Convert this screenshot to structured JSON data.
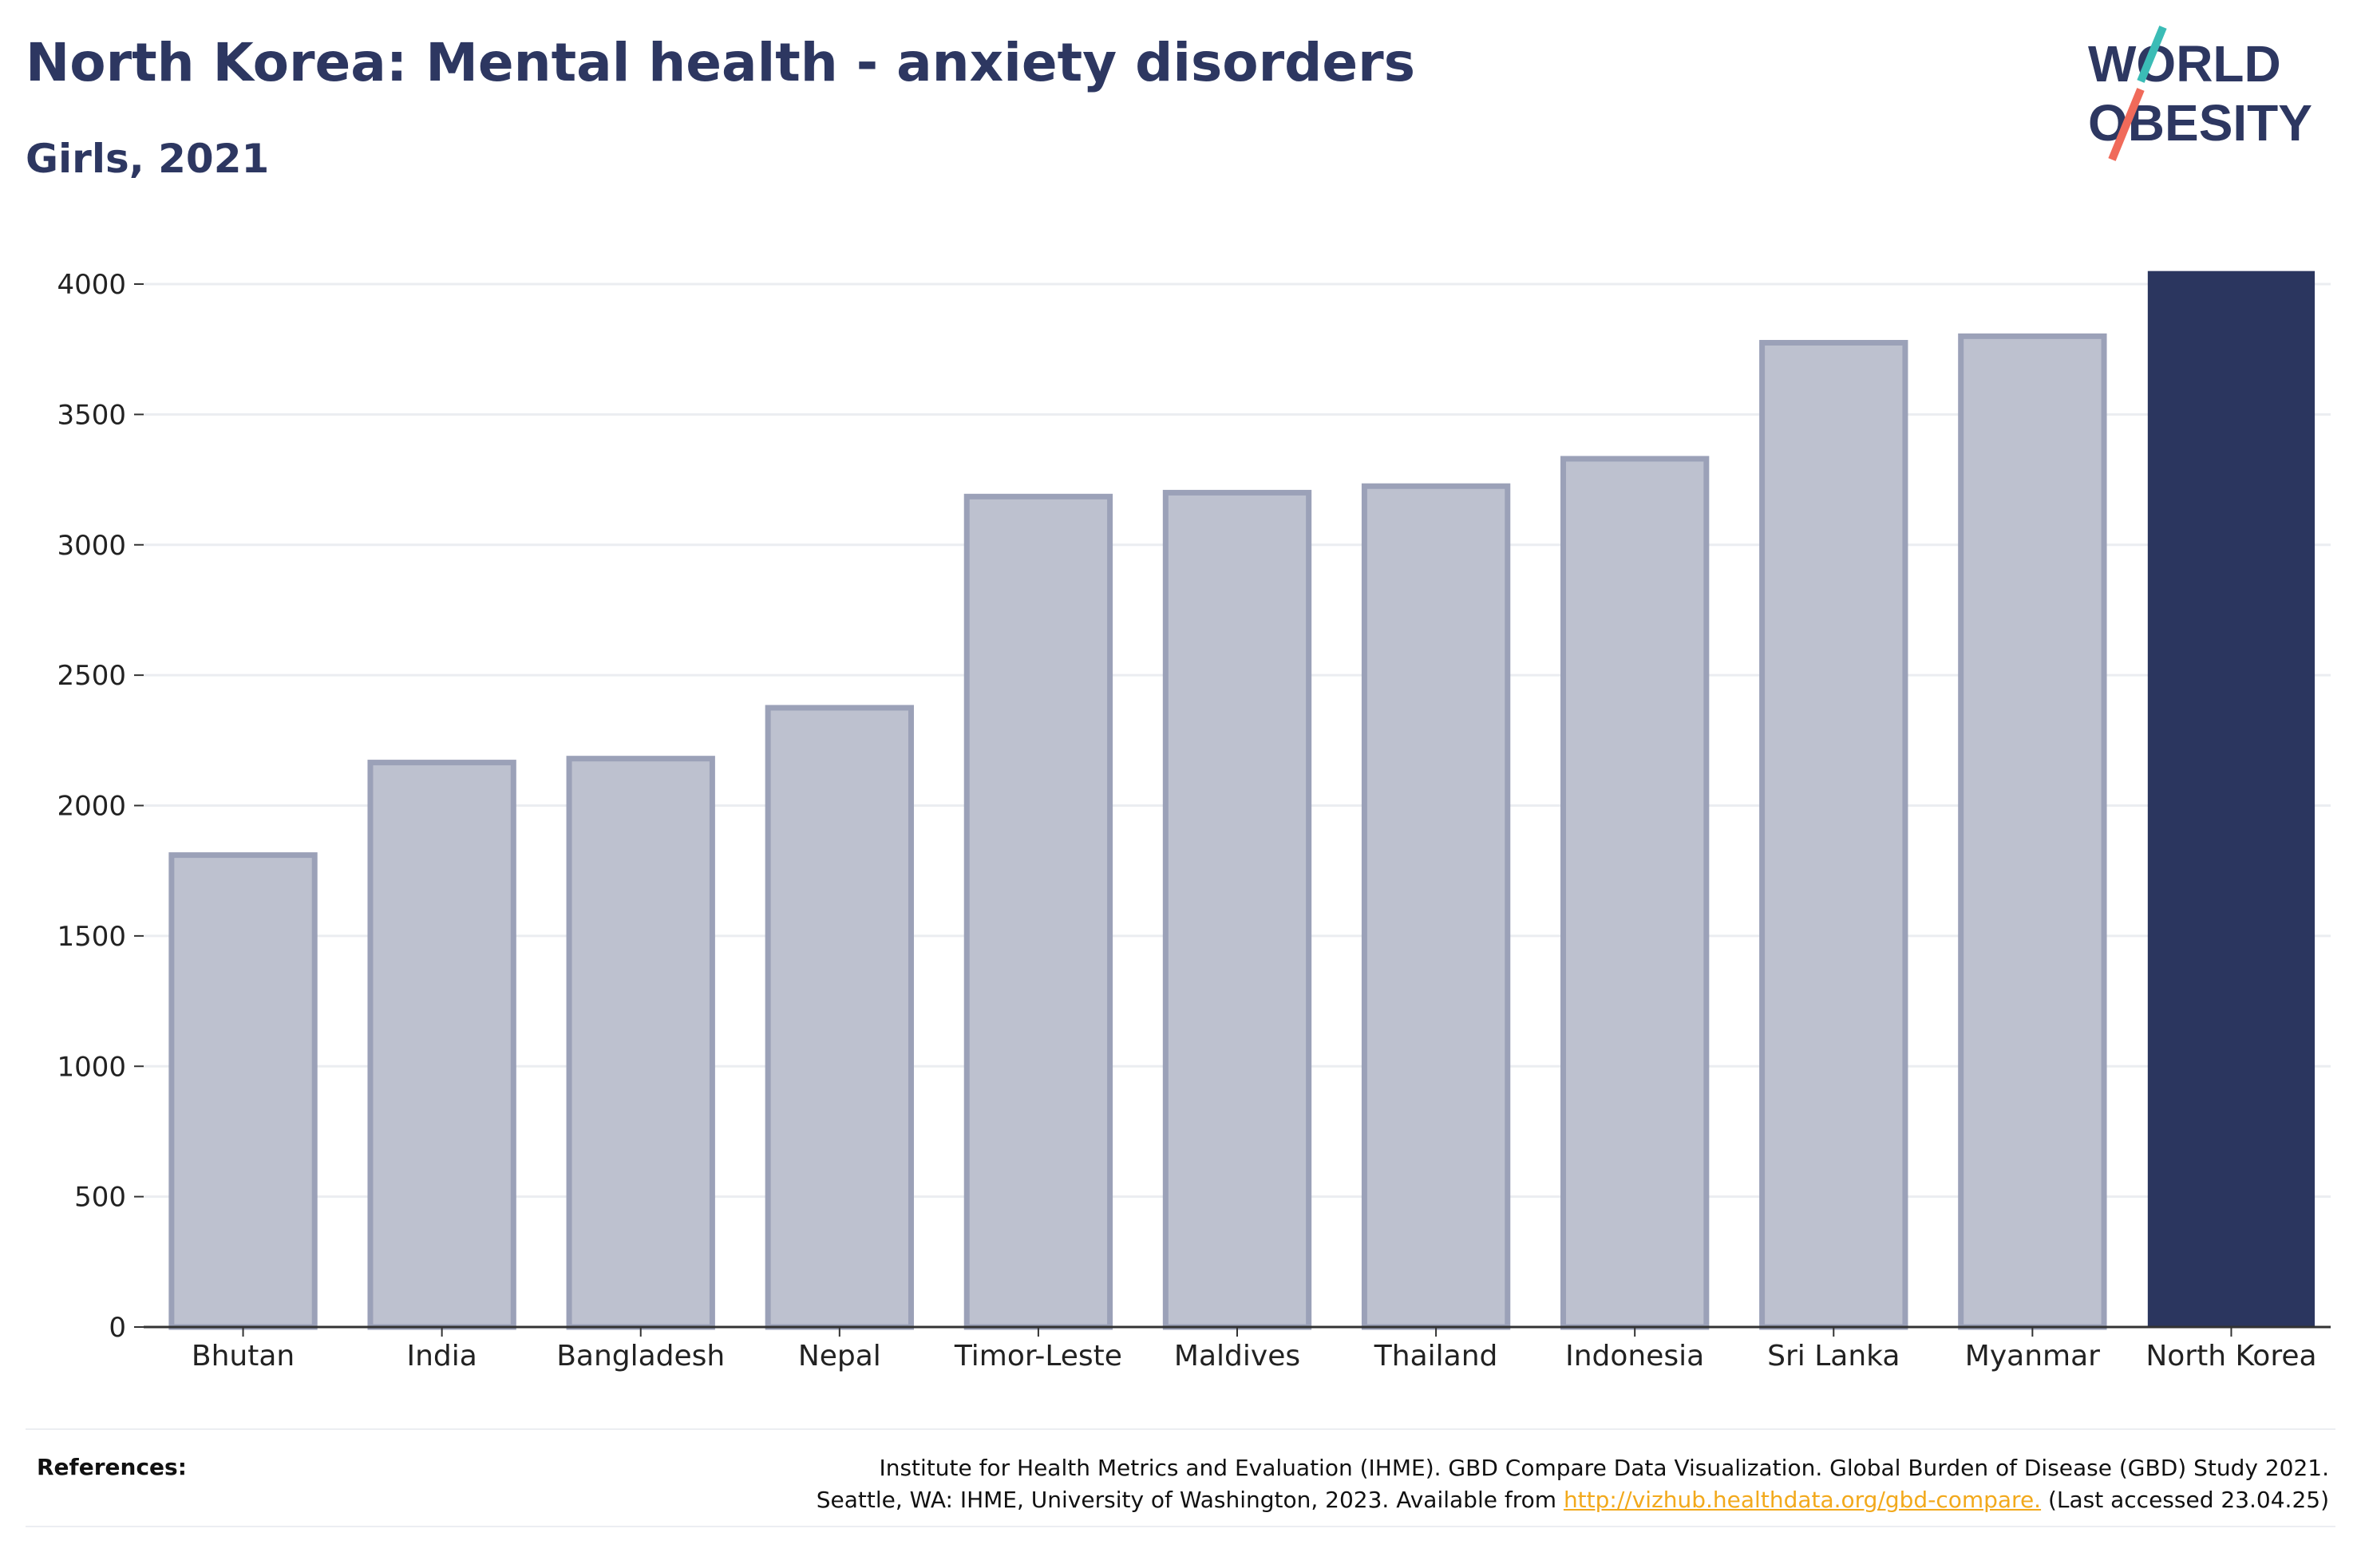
{
  "title": "North Korea: Mental health - anxiety disorders",
  "subtitle": "Girls, 2021",
  "logo": {
    "line1": "WORLD",
    "line2": "OBESITY",
    "accent_colors": [
      "#3bbcb6",
      "#f06a5a"
    ]
  },
  "colors": {
    "highlight": "#2b365f",
    "muted_fill": "#bdc1cf",
    "muted_stroke": "#9ba1b8",
    "grid": "#ebedf1",
    "axis": "#333333"
  },
  "chart_data": {
    "type": "bar",
    "categories": [
      "Bhutan",
      "India",
      "Bangladesh",
      "Nepal",
      "Timor-Leste",
      "Maldives",
      "Thailand",
      "Indonesia",
      "Sri Lanka",
      "Myanmar",
      "North Korea"
    ],
    "values": [
      1810,
      2165,
      2180,
      2375,
      3185,
      3200,
      3225,
      3330,
      3775,
      3800,
      4050
    ],
    "highlight": "North Korea",
    "ylim": [
      0,
      4200
    ],
    "yticks": [
      0,
      500,
      1000,
      1500,
      2000,
      2500,
      3000,
      3500,
      4000
    ],
    "grid": true
  },
  "references": {
    "label": "References:",
    "line1": "Institute for Health Metrics and Evaluation (IHME). GBD Compare Data Visualization. Global Burden of Disease (GBD) Study 2021.",
    "line2_prefix": "Seattle, WA: IHME, University of Washington, 2023. Available from",
    "link": "http://vizhub.healthdata.org/gbd-compare.",
    "line2_suffix": "(Last accessed 23.04.25)"
  }
}
